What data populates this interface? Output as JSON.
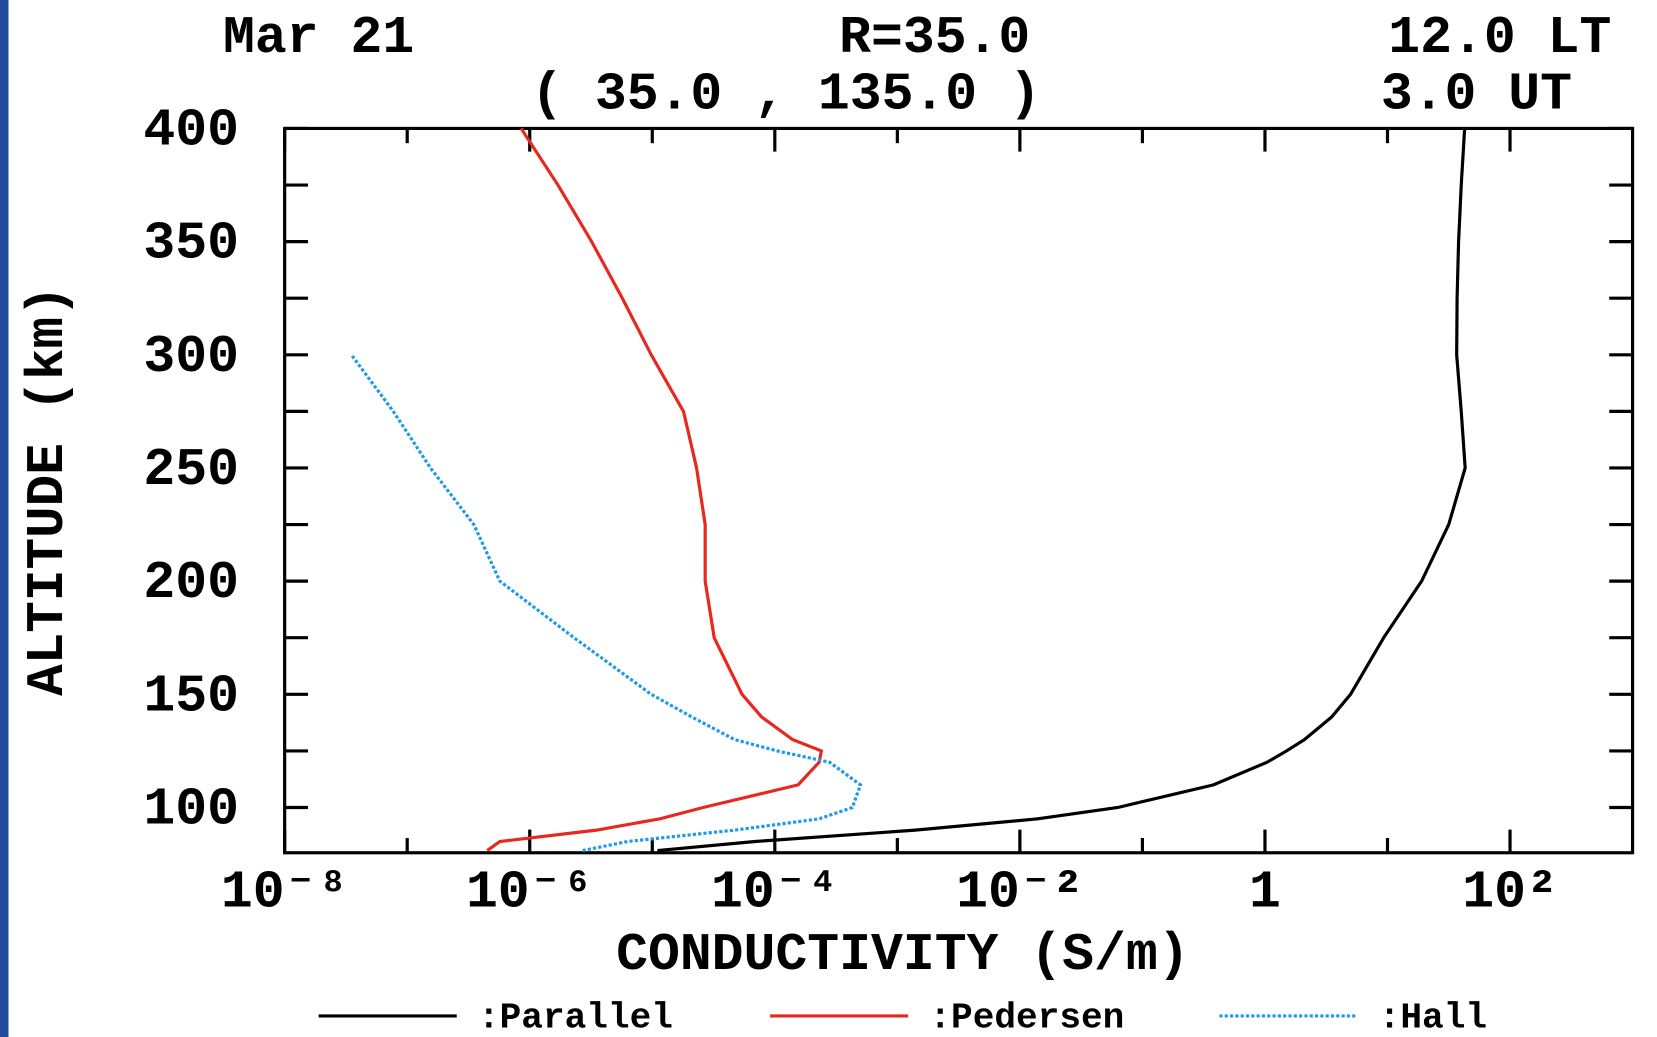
{
  "chart_data": {
    "type": "line",
    "header": {
      "date": "Mar 21",
      "radius": "R=35.0",
      "local_time": "12.0 LT",
      "location": "( 35.0 , 135.0 )",
      "universal_time": "3.0 UT"
    },
    "ylabel": "ALTITUDE (km)",
    "xlabel": "CONDUCTIVITY (S/m)",
    "xscale": "log",
    "xlim": [
      1e-08,
      1000
    ],
    "ylim": [
      80,
      400
    ],
    "xticks": [
      {
        "value": 1e-08,
        "label": "10⁻⁸"
      },
      {
        "value": 1e-06,
        "label": "10⁻⁶"
      },
      {
        "value": 0.0001,
        "label": "10⁻⁴"
      },
      {
        "value": 0.01,
        "label": "10⁻²"
      },
      1,
      {
        "value": 100,
        "label": "10²"
      }
    ],
    "xminor": [
      1e-07,
      1e-05,
      0.001,
      0.1,
      10
    ],
    "yticks": [
      100,
      150,
      200,
      250,
      300,
      350,
      400
    ],
    "yminor": [
      125,
      175,
      225,
      275,
      325,
      375
    ],
    "y": [
      81,
      85,
      90,
      95,
      100,
      110,
      120,
      125,
      130,
      140,
      150,
      175,
      200,
      225,
      250,
      275,
      300,
      325,
      350,
      375,
      400
    ],
    "series": [
      {
        "name": ":Parallel",
        "color": "#000000",
        "style": "solid",
        "values": [
          1.1e-05,
          6.9e-05,
          0.0014,
          0.014,
          0.063,
          0.38,
          1.04,
          1.5,
          2.1,
          3.5,
          5.0,
          9.3,
          19,
          31.6,
          43,
          40,
          36.7,
          37,
          38,
          40,
          42.6
        ]
      },
      {
        "name": ":Pedersen",
        "color": "#e8281e",
        "style": "solid",
        "values": [
          4.5e-07,
          5.7e-07,
          3.5e-06,
          1.15e-05,
          2.6e-05,
          0.000155,
          0.00023,
          0.00024,
          0.00014,
          7.8e-05,
          5.4e-05,
          3.2e-05,
          2.7e-05,
          2.7e-05,
          2.3e-05,
          1.8e-05,
          9.8e-06,
          5.7e-06,
          3.2e-06,
          1.7e-06,
          8.5e-07
        ]
      },
      {
        "name": ":Hall",
        "color": "#1e9be8",
        "style": "dotted",
        "values": [
          2.7e-06,
          6.3e-06,
          4.7e-05,
          0.00023,
          0.00043,
          0.0005,
          0.00028,
          0.000105,
          4.7e-05,
          2.1e-05,
          9.8e-06,
          2.3e-06,
          5.7e-07,
          3.5e-07,
          1.55e-07,
          7.7e-08,
          3.5e-08,
          null,
          null,
          null,
          null
        ]
      }
    ]
  }
}
